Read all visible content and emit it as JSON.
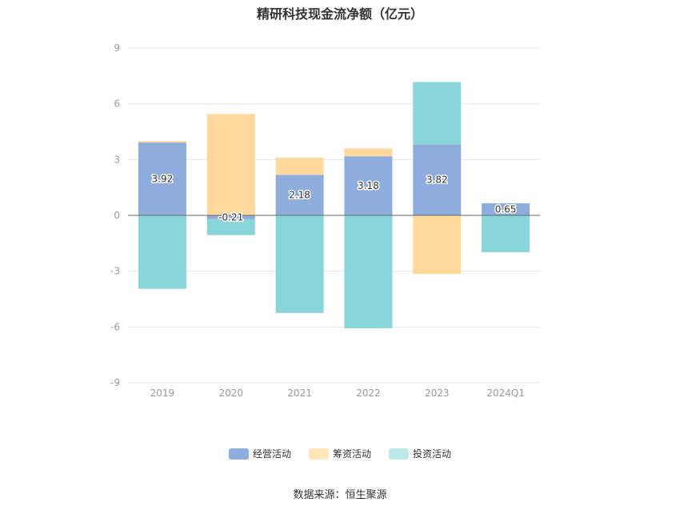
{
  "title": "精研科技现金流净额（亿元）",
  "source": "数据来源：恒生聚源",
  "chart_data": {
    "type": "bar",
    "stacked": true,
    "categories": [
      "2019",
      "2020",
      "2021",
      "2022",
      "2023",
      "2024Q1"
    ],
    "ylim": [
      -9,
      9
    ],
    "yticks": [
      -9,
      -6,
      -3,
      0,
      3,
      6,
      9
    ],
    "grid": true,
    "legend_position": "bottom",
    "series": [
      {
        "name": "经营活动",
        "color": "#8eaddc",
        "values": [
          3.92,
          -0.21,
          2.18,
          3.18,
          3.82,
          0.65
        ],
        "labels": [
          "3.92",
          "-0.21",
          "2.18",
          "3.18",
          "3.82",
          "0.65"
        ]
      },
      {
        "name": "筹资活动",
        "color": "#ffd99c",
        "values": [
          0.08,
          5.45,
          0.92,
          0.42,
          -3.15,
          0
        ]
      },
      {
        "name": "投资活动",
        "color": "#88d6da",
        "values": [
          -3.95,
          -0.85,
          -5.25,
          -6.07,
          3.35,
          -1.98
        ]
      }
    ]
  },
  "legend_colors": [
    "#8eaddc",
    "#ffe6b8",
    "#bde9ec"
  ]
}
